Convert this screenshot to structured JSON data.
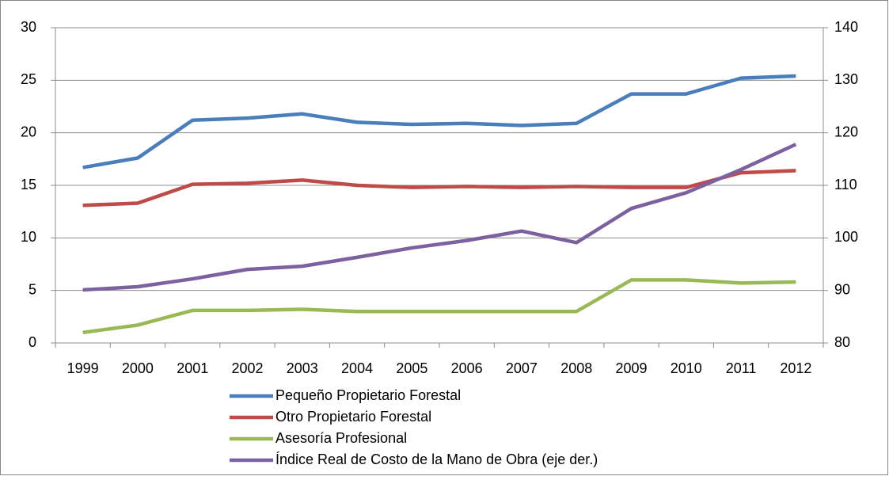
{
  "chart_data": {
    "type": "line",
    "categories": [
      "1999",
      "2000",
      "2001",
      "2002",
      "2003",
      "2004",
      "2005",
      "2006",
      "2007",
      "2008",
      "2009",
      "2010",
      "2011",
      "2012"
    ],
    "series": [
      {
        "name": "Pequeño Propietario Forestal",
        "color": "#4a7ebb",
        "values": [
          16.7,
          17.6,
          21.2,
          21.4,
          21.8,
          21.0,
          20.8,
          20.9,
          20.7,
          20.9,
          23.7,
          23.7,
          25.2,
          25.4
        ]
      },
      {
        "name": "Otro Propietario Forestal",
        "color": "#be4b48",
        "values": [
          13.1,
          13.3,
          15.1,
          15.2,
          15.5,
          15.0,
          14.8,
          14.9,
          14.8,
          14.9,
          14.8,
          14.8,
          16.2,
          16.4
        ]
      },
      {
        "name": "Asesoría Profesional",
        "color": "#98b954",
        "values": [
          1.0,
          1.7,
          3.1,
          3.1,
          3.2,
          3.0,
          3.0,
          3.0,
          3.0,
          3.0,
          6.0,
          6.0,
          5.7,
          5.8
        ]
      },
      {
        "name": "Índice Real de Costo de la Mano de Obra (eje der.)",
        "color": "#7d60a0",
        "axis": "y2",
        "values": [
          90.1,
          90.7,
          92.2,
          94.0,
          94.6,
          96.3,
          98.1,
          99.5,
          101.3,
          99.1,
          105.6,
          108.6,
          113.0,
          117.8
        ]
      }
    ],
    "ylim": [
      0,
      30
    ],
    "yticks": [
      0,
      5,
      10,
      15,
      20,
      25,
      30
    ],
    "y2lim": [
      80,
      140
    ],
    "y2ticks": [
      80,
      90,
      100,
      110,
      120,
      130,
      140
    ],
    "grid": true,
    "legend": "bottom"
  }
}
